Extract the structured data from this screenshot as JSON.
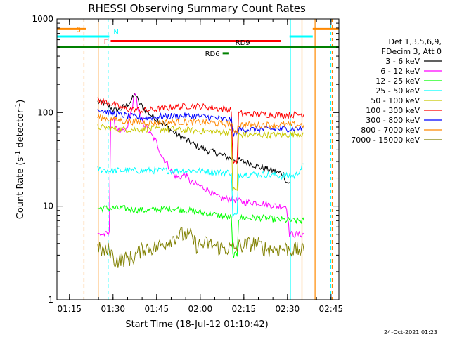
{
  "chart_data": {
    "type": "line",
    "title": "RHESSI Observing Summary Count Rates",
    "xlabel": "Start Time (18-Jul-12 01:10:42)",
    "ylabel_main": "Count Rate (s",
    "ylabel_sup1": "-1",
    "ylabel_mid": " detector",
    "ylabel_sup2": "-1",
    "ylabel_end": ")",
    "footer": "24-Oct-2021 01:23",
    "x_axis": {
      "unit": "minutes since 01:10:42",
      "range": [
        0,
        97
      ]
    },
    "y_axis": {
      "scale": "log",
      "range": [
        1,
        1000
      ]
    },
    "x_ticks": [
      {
        "label": "01:15",
        "value": 4.3
      },
      {
        "label": "01:30",
        "value": 19.3
      },
      {
        "label": "01:45",
        "value": 34.3
      },
      {
        "label": "02:00",
        "value": 49.3
      },
      {
        "label": "02:15",
        "value": 64.3
      },
      {
        "label": "02:30",
        "value": 79.3
      },
      {
        "label": "02:45",
        "value": 94.3
      }
    ],
    "y_ticks": [
      {
        "label": "1",
        "value": 1
      },
      {
        "label": "10",
        "value": 10
      },
      {
        "label": "100",
        "value": 100
      },
      {
        "label": "1000",
        "value": 1000
      }
    ],
    "legend_header": [
      "Det 1,3,5,6,9,",
      "FDecim 3, Att 0"
    ],
    "series": [
      {
        "name": "3 - 6 keV",
        "color": "#000000",
        "points": [
          [
            14,
            130
          ],
          [
            16,
            125
          ],
          [
            18,
            115
          ],
          [
            20,
            105
          ],
          [
            22,
            110
          ],
          [
            24,
            120
          ],
          [
            26,
            140
          ],
          [
            27,
            160
          ],
          [
            28,
            130
          ],
          [
            30,
            110
          ],
          [
            33,
            90
          ],
          [
            36,
            78
          ],
          [
            40,
            62
          ],
          [
            44,
            52
          ],
          [
            48,
            44
          ],
          [
            52,
            39
          ],
          [
            56,
            36
          ],
          [
            59,
            33
          ],
          [
            62,
            31
          ],
          [
            66,
            29
          ],
          [
            70,
            26
          ],
          [
            74,
            24
          ],
          [
            78,
            22
          ],
          [
            79,
            18
          ],
          [
            80,
            18
          ]
        ]
      },
      {
        "name": "6 - 12 keV",
        "color": "#ff00ff",
        "points": [
          [
            14,
            5
          ],
          [
            17,
            5
          ],
          [
            18,
            5
          ],
          [
            18.5,
            90
          ],
          [
            20,
            75
          ],
          [
            22,
            60
          ],
          [
            24,
            65
          ],
          [
            26,
            120
          ],
          [
            27,
            170
          ],
          [
            28,
            100
          ],
          [
            30,
            75
          ],
          [
            32,
            60
          ],
          [
            34,
            50
          ],
          [
            36,
            35
          ],
          [
            38,
            28
          ],
          [
            40,
            22
          ],
          [
            42,
            20
          ],
          [
            44,
            22
          ],
          [
            46,
            18
          ],
          [
            48,
            17
          ],
          [
            50,
            16
          ],
          [
            52,
            15
          ],
          [
            54,
            13
          ],
          [
            57,
            12
          ],
          [
            60,
            12
          ],
          [
            64,
            11
          ],
          [
            68,
            11
          ],
          [
            72,
            10.5
          ],
          [
            76,
            10
          ],
          [
            79,
            10
          ],
          [
            80,
            5
          ],
          [
            85,
            5
          ]
        ]
      },
      {
        "name": "12 - 25 keV",
        "color": "#00ff00",
        "points": [
          [
            14,
            9.5
          ],
          [
            18,
            9.5
          ],
          [
            22,
            9.5
          ],
          [
            30,
            9
          ],
          [
            40,
            9.5
          ],
          [
            50,
            8.5
          ],
          [
            56,
            8
          ],
          [
            60,
            7.5
          ],
          [
            60.5,
            3
          ],
          [
            62,
            3
          ],
          [
            62.5,
            7.5
          ],
          [
            70,
            7.5
          ],
          [
            80,
            7
          ],
          [
            85,
            7
          ]
        ]
      },
      {
        "name": "25 - 50 keV",
        "color": "#00ffff",
        "points": [
          [
            14,
            25
          ],
          [
            18,
            24
          ],
          [
            24,
            24
          ],
          [
            32,
            24
          ],
          [
            40,
            24
          ],
          [
            48,
            24
          ],
          [
            56,
            23
          ],
          [
            60,
            23
          ],
          [
            60.5,
            8
          ],
          [
            62,
            8
          ],
          [
            62.5,
            22
          ],
          [
            70,
            22
          ],
          [
            78,
            21
          ],
          [
            82,
            21
          ],
          [
            85,
            28
          ]
        ]
      },
      {
        "name": "50 - 100 keV",
        "color": "#c8c800",
        "points": [
          [
            14,
            70
          ],
          [
            18,
            68
          ],
          [
            24,
            66
          ],
          [
            32,
            67
          ],
          [
            40,
            66
          ],
          [
            48,
            64
          ],
          [
            56,
            62
          ],
          [
            60,
            62
          ],
          [
            60.5,
            15
          ],
          [
            62,
            15
          ],
          [
            62.5,
            58
          ],
          [
            70,
            58
          ],
          [
            78,
            58
          ],
          [
            85,
            60
          ]
        ]
      },
      {
        "name": "100 - 300 keV",
        "color": "#ff0000",
        "points": [
          [
            14,
            135
          ],
          [
            18,
            128
          ],
          [
            22,
            112
          ],
          [
            26,
            108
          ],
          [
            30,
            105
          ],
          [
            34,
            108
          ],
          [
            40,
            115
          ],
          [
            46,
            118
          ],
          [
            52,
            115
          ],
          [
            56,
            110
          ],
          [
            60,
            108
          ],
          [
            60.5,
            30
          ],
          [
            62,
            30
          ],
          [
            62.5,
            98
          ],
          [
            70,
            96
          ],
          [
            78,
            94
          ],
          [
            85,
            96
          ]
        ]
      },
      {
        "name": "300 - 800 keV",
        "color": "#0000ff",
        "points": [
          [
            14,
            110
          ],
          [
            18,
            100
          ],
          [
            22,
            95
          ],
          [
            26,
            90
          ],
          [
            30,
            88
          ],
          [
            34,
            90
          ],
          [
            40,
            92
          ],
          [
            46,
            92
          ],
          [
            52,
            90
          ],
          [
            56,
            86
          ],
          [
            60,
            84
          ],
          [
            60.5,
            60
          ],
          [
            62,
            60
          ],
          [
            62.5,
            66
          ],
          [
            70,
            66
          ],
          [
            78,
            67
          ],
          [
            85,
            68
          ]
        ]
      },
      {
        "name": "800 - 7000 keV",
        "color": "#ff8800",
        "points": [
          [
            14,
            90
          ],
          [
            18,
            85
          ],
          [
            22,
            82
          ],
          [
            26,
            80
          ],
          [
            30,
            78
          ],
          [
            34,
            78
          ],
          [
            40,
            79
          ],
          [
            46,
            79
          ],
          [
            52,
            78
          ],
          [
            56,
            76
          ],
          [
            60,
            76
          ],
          [
            60.5,
            65
          ],
          [
            62,
            65
          ],
          [
            62.5,
            74
          ],
          [
            70,
            74
          ],
          [
            78,
            74
          ],
          [
            85,
            74
          ]
        ]
      },
      {
        "name": "7000 - 15000 keV",
        "color": "#808000",
        "points": [
          [
            14,
            3.5
          ],
          [
            17,
            3.2
          ],
          [
            18,
            3.5
          ],
          [
            20,
            2.6
          ],
          [
            26,
            2.8
          ],
          [
            30,
            3.6
          ],
          [
            34,
            3.6
          ],
          [
            38,
            4.2
          ],
          [
            42,
            5
          ],
          [
            46,
            4.8
          ],
          [
            48,
            3.8
          ],
          [
            52,
            4
          ],
          [
            56,
            3.6
          ],
          [
            60,
            3.5
          ],
          [
            64,
            3.8
          ],
          [
            68,
            4
          ],
          [
            72,
            3.5
          ],
          [
            76,
            3.5
          ],
          [
            80,
            3.5
          ],
          [
            85,
            3.3
          ]
        ]
      }
    ],
    "flags": [
      {
        "label": "S",
        "color": "#ff8800",
        "value": 780,
        "segments": [
          [
            0,
            10
          ],
          [
            88,
            97
          ]
        ]
      },
      {
        "label": "N",
        "color": "#00ffff",
        "value": 650,
        "segments": [
          [
            0,
            18
          ],
          [
            80,
            88
          ]
        ]
      },
      {
        "label": "F",
        "color": "#ff0000",
        "value": 580,
        "segments": [
          [
            18.5,
            77
          ]
        ]
      },
      {
        "label": "RD9",
        "color": "#008000",
        "value": 500,
        "segments": [
          [
            0,
            97
          ]
        ]
      },
      {
        "label": "RD6",
        "color": "#008000",
        "value": 430,
        "segments": [
          [
            57,
            59
          ]
        ]
      }
    ],
    "vlines": [
      {
        "x": 9.3,
        "color": "#ff8800",
        "dash": true
      },
      {
        "x": 14.2,
        "color": "#ff8800",
        "dash": false
      },
      {
        "x": 17.6,
        "color": "#00ffff",
        "dash": true
      },
      {
        "x": 80.3,
        "color": "#00ffff",
        "dash": false
      },
      {
        "x": 84.3,
        "color": "#ff8800",
        "dash": false
      },
      {
        "x": 88.8,
        "color": "#ff8800",
        "dash": false
      },
      {
        "x": 94.2,
        "color": "#00ffff",
        "dash": true
      },
      {
        "x": 94.7,
        "color": "#ff8800",
        "dash": true
      }
    ]
  }
}
